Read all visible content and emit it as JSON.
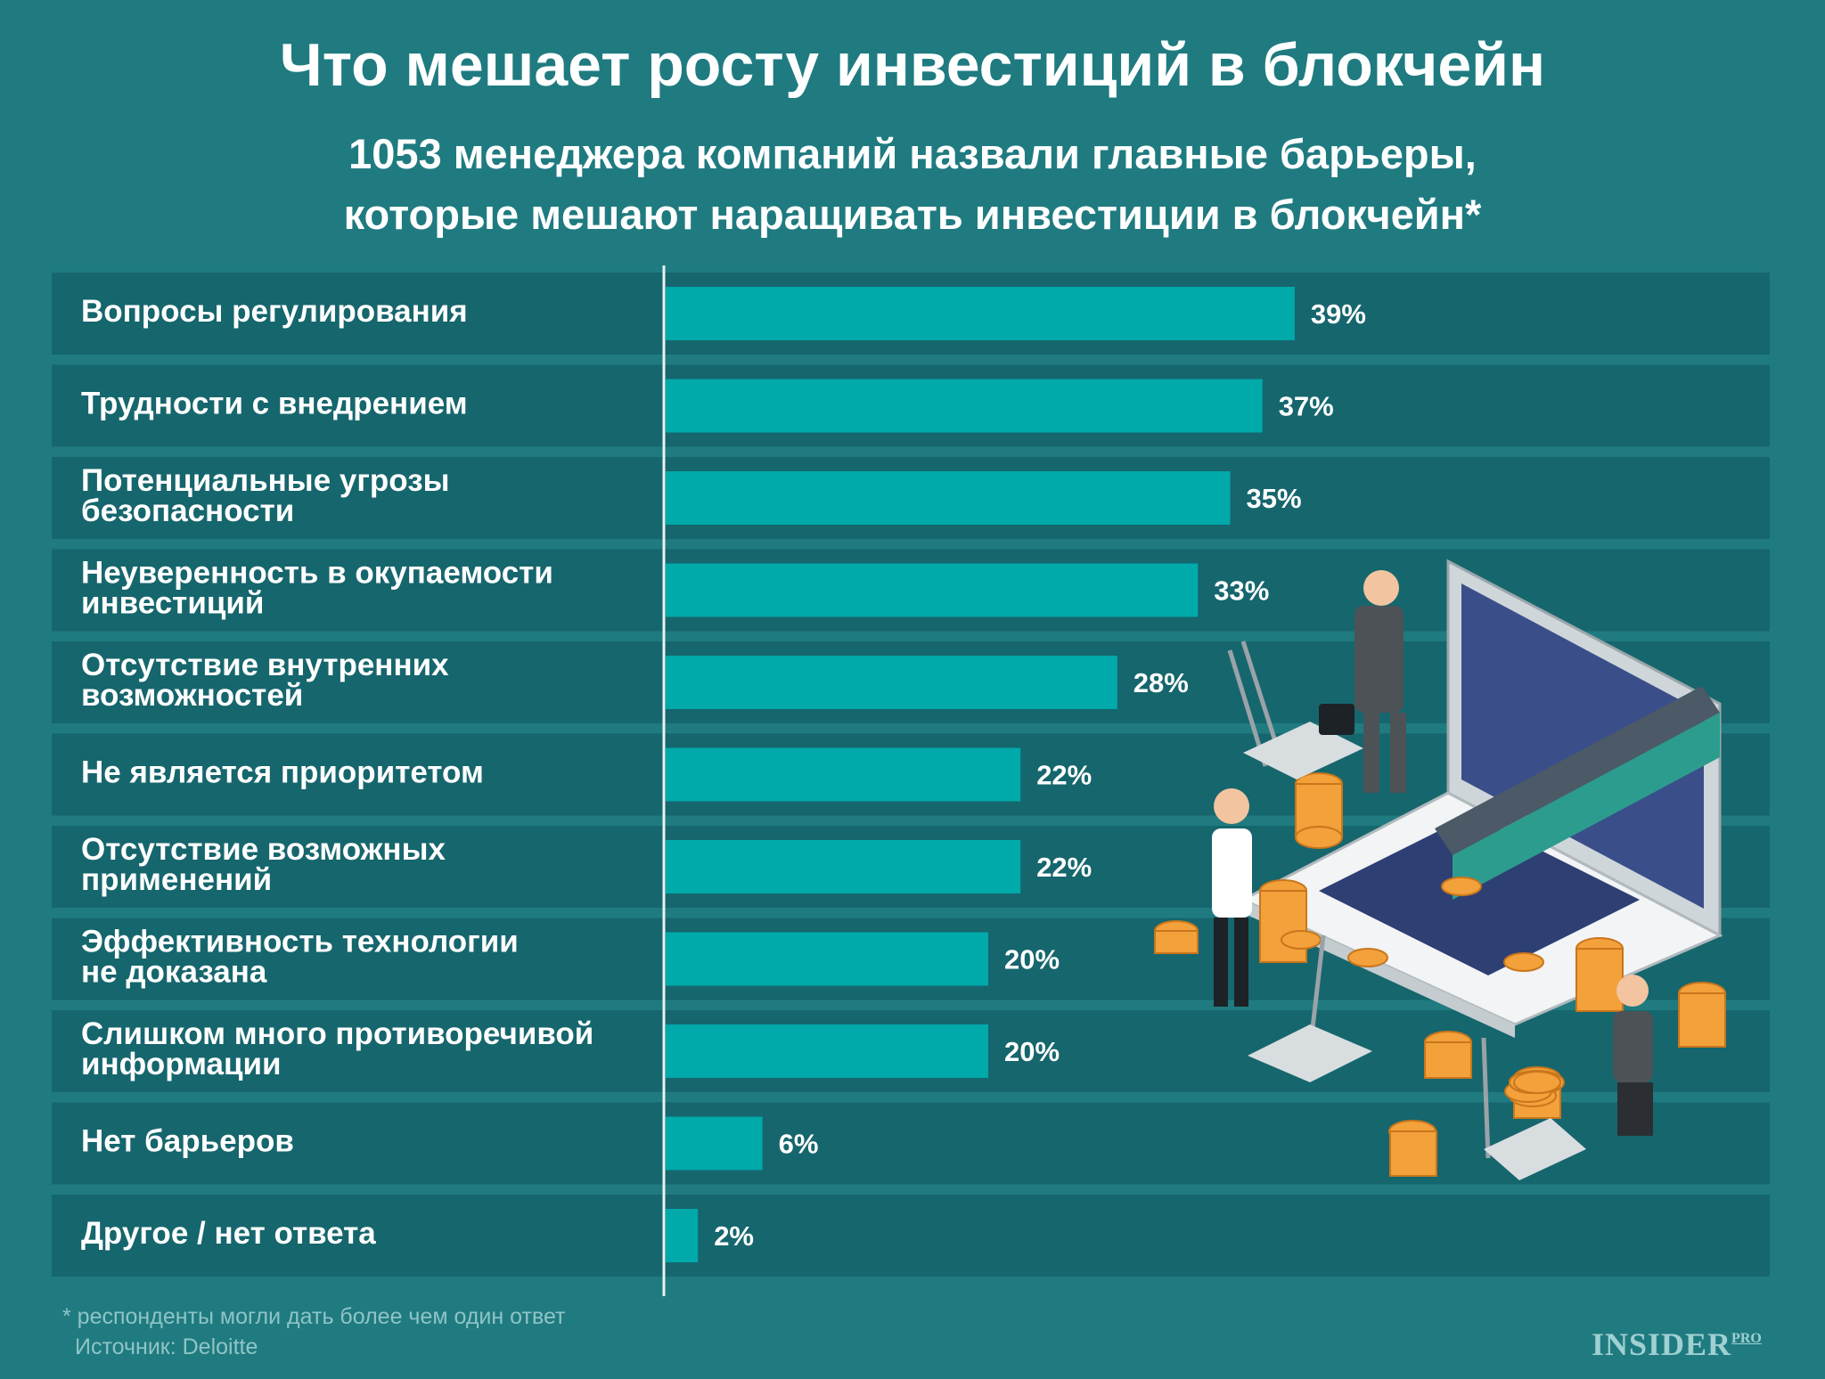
{
  "header": {
    "title": "Что мешает росту инвестиций в блокчейн",
    "subtitle_line1": "1053 менеджера компаний назвали главные барьеры,",
    "subtitle_line2": "которые мешают наращивать инвестиции в блокчейн*"
  },
  "chart_data": {
    "type": "bar",
    "orientation": "horizontal",
    "categories": [
      [
        "Вопросы регулирования"
      ],
      [
        "Трудности с внедрением"
      ],
      [
        "Потенциальные угрозы",
        "безопасности"
      ],
      [
        "Неуверенность в окупаемости",
        "инвестиций"
      ],
      [
        "Отсутствие внутренних",
        "возможностей"
      ],
      [
        "Не является приоритетом"
      ],
      [
        "Отсутствие возможных",
        "применений"
      ],
      [
        "Эффективность технологии",
        "не доказана"
      ],
      [
        "Слишком много противоречивой",
        "информации"
      ],
      [
        "Нет барьеров"
      ],
      [
        "Другое / нет ответа"
      ]
    ],
    "values": [
      39,
      37,
      35,
      33,
      28,
      22,
      22,
      20,
      20,
      6,
      2
    ],
    "value_labels": [
      "39%",
      "37%",
      "35%",
      "33%",
      "28%",
      "22%",
      "22%",
      "20%",
      "20%",
      "6%",
      "2%"
    ],
    "unit": "%",
    "bar_color": "#00a9aa",
    "row_color": "#16666d",
    "background_color": "#1f7b80"
  },
  "footer": {
    "footnote": "* респонденты могли дать более чем один ответ",
    "source": "Источник: Deloitte",
    "logo_main": "INSIDER",
    "logo_sup": "PRO"
  }
}
